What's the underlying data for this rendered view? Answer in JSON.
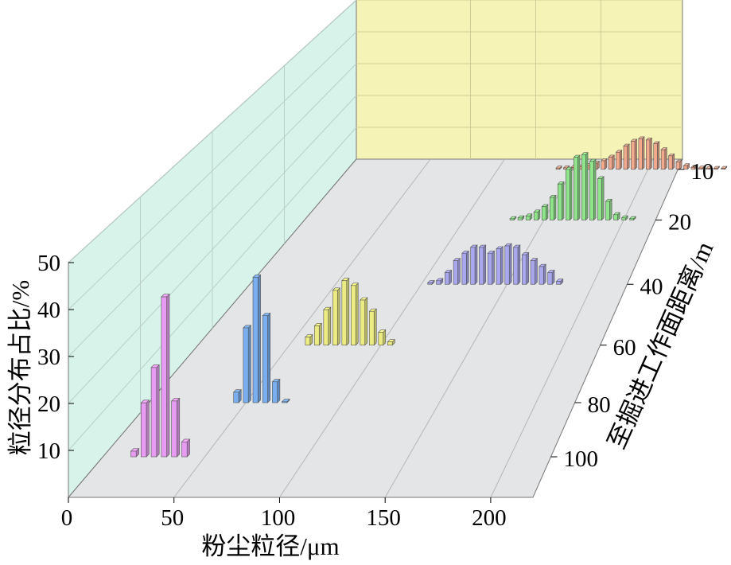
{
  "chart_data": {
    "type": "bar3d",
    "xlabel": "粉尘粒径/μm",
    "ylabel": "粒径分布占比/%",
    "zlabel": "至掘进工作面距离/m",
    "x_ticks": [
      "0",
      "50",
      "100",
      "150",
      "200"
    ],
    "y_ticks": [
      "10",
      "20",
      "30",
      "40",
      "50"
    ],
    "z_ticks": [
      "10",
      "20",
      "40",
      "60",
      "80",
      "100"
    ],
    "xlim": [
      0,
      220
    ],
    "ylim": [
      0,
      50
    ],
    "series": [
      {
        "distance": "10",
        "color": "#f3a98c",
        "x": [
          140,
          145,
          150,
          155,
          160,
          165,
          170,
          175,
          180,
          185,
          190,
          195,
          200,
          205,
          210,
          215,
          220,
          225,
          230,
          235,
          240,
          245,
          250
        ],
        "y": [
          0.5,
          0.6,
          0.8,
          1.0,
          1.5,
          2.5,
          3.5,
          5,
          7,
          9.5,
          11.5,
          12.5,
          12,
          10.5,
          8,
          5.5,
          3,
          1.5,
          0.8,
          0.5,
          0.4,
          0.3,
          0.3
        ]
      },
      {
        "distance": "20",
        "color": "#8fe68a",
        "x": [
          130,
          135,
          140,
          145,
          150,
          155,
          160,
          165,
          170,
          175,
          180,
          185,
          190,
          195,
          200,
          205
        ],
        "y": [
          0.5,
          0.8,
          1.5,
          3,
          5,
          8.5,
          13.5,
          19,
          23.5,
          24.5,
          22,
          15.5,
          7,
          2,
          0.8,
          0.5
        ]
      },
      {
        "distance": "40",
        "color": "#a9a7ee",
        "x": [
          105,
          110,
          115,
          120,
          125,
          130,
          135,
          140,
          145,
          150,
          155,
          160,
          165,
          170,
          175,
          180
        ],
        "y": [
          0.5,
          1.2,
          4,
          8,
          10.5,
          12.5,
          12.5,
          10.5,
          12,
          13,
          12.5,
          10,
          8,
          6,
          4,
          1
        ]
      },
      {
        "distance": "60",
        "color": "#ecec82",
        "x": [
          60,
          65,
          70,
          75,
          80,
          85,
          90,
          95,
          100,
          105
        ],
        "y": [
          2.5,
          6,
          11,
          17,
          20,
          18.5,
          14,
          10.5,
          4,
          1
        ]
      },
      {
        "distance": "80",
        "color": "#79aef0",
        "x": [
          45,
          50,
          55,
          60,
          65,
          70
        ],
        "y": [
          3,
          21.5,
          36,
          25,
          6,
          0
        ]
      },
      {
        "distance": "100",
        "color": "#e79bf2",
        "x": [
          15,
          20,
          25,
          30,
          35,
          40
        ],
        "y": [
          1.5,
          14.5,
          24,
          43,
          15,
          4
        ]
      }
    ]
  }
}
